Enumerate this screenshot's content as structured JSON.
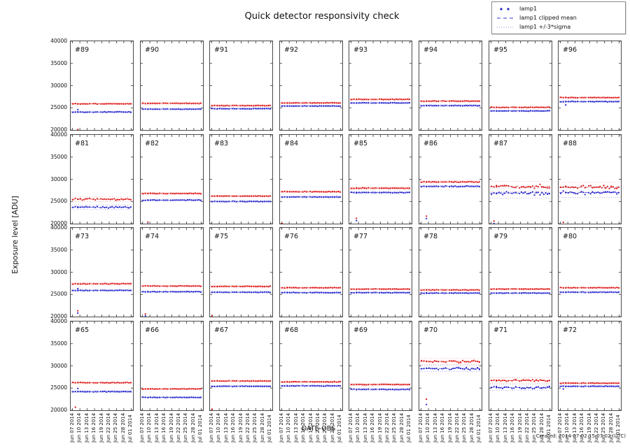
{
  "chart_data": {
    "type": "scatter",
    "title": "Quick detector responsivity check",
    "xlabel": "DATE-OBS",
    "ylabel": "Exposure level [ADU]",
    "created_note": "Created: 2014-07-02 15:07:02 (UTC)",
    "ylim": [
      20000,
      40000
    ],
    "yticks": [
      40000,
      35000,
      30000,
      25000,
      20000
    ],
    "ytick_labels": [
      "40000",
      "35000",
      "30000",
      "25000",
      "20000"
    ],
    "xtick_labels": [
      "Jun 07 2014",
      "Jun 10 2014",
      "Jun 13 2014",
      "Jun 16 2014",
      "Jun 19 2014",
      "Jun 22 2014",
      "Jun 25 2014",
      "Jun 28 2014",
      "Jul 01 2014"
    ],
    "grid": false,
    "legend": {
      "position": "top-right",
      "entries": [
        {
          "label": "lamp1",
          "style": "points"
        },
        {
          "label": "lamp1 clipped mean",
          "style": "dashed"
        },
        {
          "label": "lamp1 +/-3*sigma",
          "style": "dotted"
        }
      ]
    },
    "colors": {
      "red_series": "#dd1111",
      "blue_series": "#2121cc"
    },
    "series_note": "each panel shows two point series (red upper, blue lower = lamp1) with clipped-mean dashed line and +/-3*sigma dotted lines; values in ADU",
    "panels": [
      {
        "label": "#89",
        "red": 25900,
        "blue": 24050,
        "scatter": 60,
        "outliers": [
          [
            3,
            24600,
            "b"
          ],
          [
            2,
            20100,
            "r"
          ]
        ]
      },
      {
        "label": "#90",
        "red": 26000,
        "blue": 24700,
        "scatter": 60,
        "outliers": []
      },
      {
        "label": "#91",
        "red": 25500,
        "blue": 24800,
        "scatter": 60,
        "outliers": []
      },
      {
        "label": "#92",
        "red": 26100,
        "blue": 25400,
        "scatter": 60,
        "outliers": []
      },
      {
        "label": "#93",
        "red": 26900,
        "blue": 26100,
        "scatter": 60,
        "outliers": []
      },
      {
        "label": "#94",
        "red": 26500,
        "blue": 25500,
        "scatter": 60,
        "outliers": []
      },
      {
        "label": "#95",
        "red": 25100,
        "blue": 24300,
        "scatter": 60,
        "outliers": []
      },
      {
        "label": "#96",
        "red": 27300,
        "blue": 26400,
        "scatter": 60,
        "outliers": [
          [
            2,
            25650,
            "b"
          ]
        ]
      },
      {
        "label": "#81",
        "red": 25500,
        "blue": 23700,
        "scatter": 170,
        "outliers": []
      },
      {
        "label": "#82",
        "red": 26800,
        "blue": 25300,
        "scatter": 60,
        "outliers": [
          [
            2,
            20350,
            "r"
          ],
          [
            2,
            19950,
            "b"
          ]
        ]
      },
      {
        "label": "#83",
        "red": 26200,
        "blue": 25000,
        "scatter": 60,
        "outliers": []
      },
      {
        "label": "#84",
        "red": 27200,
        "blue": 26000,
        "scatter": 60,
        "outliers": [
          [
            0,
            20050,
            "r"
          ]
        ]
      },
      {
        "label": "#85",
        "red": 28000,
        "blue": 27000,
        "scatter": 80,
        "outliers": [
          [
            2,
            21200,
            "r"
          ],
          [
            2,
            20700,
            "b"
          ]
        ]
      },
      {
        "label": "#86",
        "red": 29400,
        "blue": 28400,
        "scatter": 80,
        "outliers": [
          [
            2,
            21700,
            "r"
          ],
          [
            2,
            21150,
            "b"
          ]
        ]
      },
      {
        "label": "#87",
        "red": 28400,
        "blue": 26900,
        "scatter": 380,
        "outliers": [
          [
            1,
            20600,
            "r"
          ],
          [
            1,
            20050,
            "b"
          ]
        ]
      },
      {
        "label": "#88",
        "red": 28200,
        "blue": 27000,
        "scatter": 360,
        "outliers": [
          [
            1,
            20300,
            "r"
          ]
        ]
      },
      {
        "label": "#73",
        "red": 27400,
        "blue": 25900,
        "scatter": 70,
        "outliers": [
          [
            3,
            26300,
            "b"
          ],
          [
            2,
            21300,
            "r"
          ],
          [
            2,
            20800,
            "b"
          ]
        ]
      },
      {
        "label": "#74",
        "red": 26900,
        "blue": 25600,
        "scatter": 60,
        "outliers": [
          [
            1,
            20600,
            "r"
          ],
          [
            1,
            20150,
            "b"
          ]
        ]
      },
      {
        "label": "#75",
        "red": 26800,
        "blue": 25500,
        "scatter": 60,
        "outliers": [
          [
            0,
            20200,
            "r"
          ]
        ]
      },
      {
        "label": "#76",
        "red": 26500,
        "blue": 25400,
        "scatter": 60,
        "outliers": []
      },
      {
        "label": "#77",
        "red": 26200,
        "blue": 25400,
        "scatter": 60,
        "outliers": []
      },
      {
        "label": "#78",
        "red": 26000,
        "blue": 25300,
        "scatter": 60,
        "outliers": []
      },
      {
        "label": "#79",
        "red": 26200,
        "blue": 25300,
        "scatter": 60,
        "outliers": []
      },
      {
        "label": "#80",
        "red": 26500,
        "blue": 25500,
        "scatter": 60,
        "outliers": []
      },
      {
        "label": "#65",
        "red": 26200,
        "blue": 24200,
        "scatter": 70,
        "outliers": [
          [
            3,
            24900,
            "b"
          ],
          [
            1,
            20700,
            "r"
          ]
        ]
      },
      {
        "label": "#66",
        "red": 24800,
        "blue": 22900,
        "scatter": 60,
        "outliers": []
      },
      {
        "label": "#67",
        "red": 26600,
        "blue": 25400,
        "scatter": 60,
        "outliers": [
          [
            0,
            20200,
            "r"
          ]
        ]
      },
      {
        "label": "#68",
        "red": 26400,
        "blue": 25500,
        "scatter": 60,
        "outliers": []
      },
      {
        "label": "#69",
        "red": 25800,
        "blue": 24700,
        "scatter": 60,
        "outliers": []
      },
      {
        "label": "#70",
        "red": 31000,
        "blue": 29400,
        "scatter": 220,
        "outliers": [
          [
            2,
            22500,
            "r"
          ],
          [
            2,
            21300,
            "b"
          ]
        ]
      },
      {
        "label": "#71",
        "red": 26700,
        "blue": 25100,
        "scatter": 200,
        "outliers": []
      },
      {
        "label": "#72",
        "red": 26100,
        "blue": 25400,
        "scatter": 60,
        "outliers": [
          [
            1,
            24800,
            "b"
          ]
        ]
      }
    ]
  }
}
